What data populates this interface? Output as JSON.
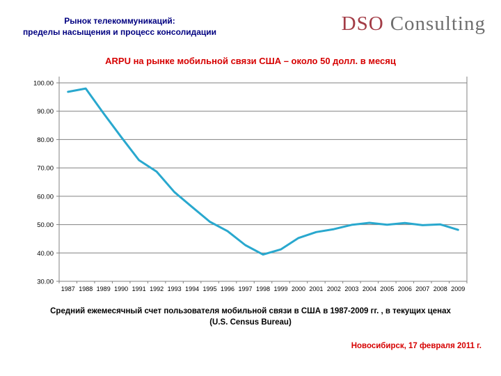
{
  "slide": {
    "header": {
      "line1": "Рынок телекоммуникаций:",
      "line2": "пределы насыщения и процесс консолидации"
    },
    "logo": {
      "part1": "DSO",
      "part2": "Consulting"
    },
    "chart_title": "ARPU на рынке мобильной связи США – около 50 долл. в месяц",
    "caption_line1": "Средний ежемесячный счет пользователя мобильной связи в США в 1987-2009 гг. , в текущих ценах",
    "caption_line2": "(U.S. Census Bureau)",
    "footer_date": "Новосибирск, 17 февраля 2011 г."
  },
  "colors": {
    "header_navy": "#000080",
    "title_red": "#D60000",
    "logo_red": "#A33C46",
    "logo_gray": "#6E6E6E",
    "line_cyan": "#29A8CE",
    "grid_gray": "#808080"
  },
  "chart_data": {
    "type": "line",
    "title": "ARPU на рынке мобильной связи США – около 50 долл. в месяц",
    "x": [
      1987,
      1988,
      1989,
      1990,
      1991,
      1992,
      1993,
      1994,
      1995,
      1996,
      1997,
      1998,
      1999,
      2000,
      2001,
      2002,
      2003,
      2004,
      2005,
      2006,
      2007,
      2008,
      2009
    ],
    "values": [
      96.83,
      98.02,
      89.3,
      80.9,
      72.74,
      68.68,
      61.48,
      56.21,
      51.0,
      47.7,
      42.78,
      39.43,
      41.24,
      45.27,
      47.37,
      48.4,
      49.91,
      50.64,
      49.98,
      50.56,
      49.79,
      50.07,
      48.16
    ],
    "xlabel": "",
    "ylabel": "",
    "ylim": [
      30,
      100
    ],
    "ytick_step": 10,
    "ytick_format": "0.00",
    "grid": true,
    "legend": false,
    "line_color": "#29A8CE",
    "grid_color": "#808080",
    "axis_color": "#808080"
  }
}
